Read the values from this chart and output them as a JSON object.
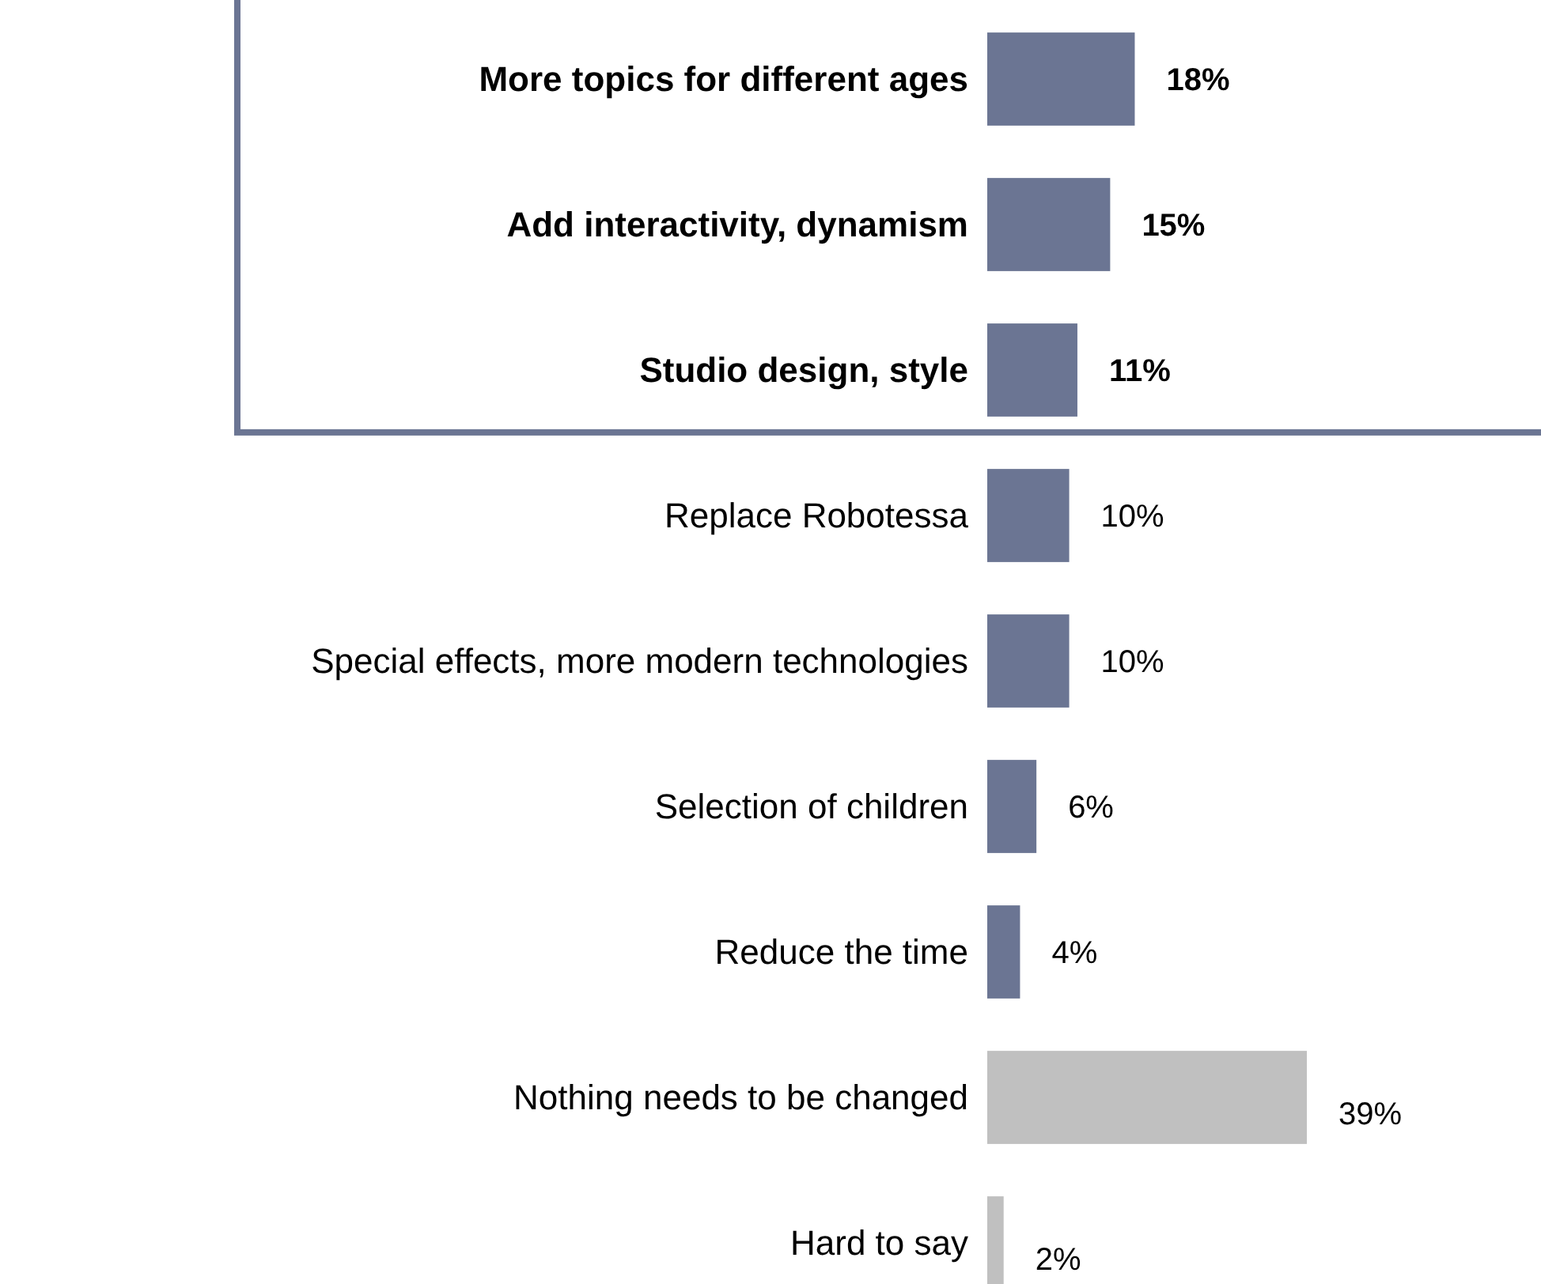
{
  "chart_data": {
    "type": "bar",
    "orientation": "horizontal",
    "categories": [
      "More topics for different ages",
      "Add interactivity, dynamism",
      "Studio design, style",
      "Replace Robotessa",
      "Special effects, more modern technologies",
      "Selection of children",
      "Reduce the time",
      "Nothing needs to be changed",
      "Hard to say"
    ],
    "values": [
      18,
      15,
      11,
      10,
      10,
      6,
      4,
      39,
      2
    ],
    "colors": [
      "#6b7593",
      "#6b7593",
      "#6b7593",
      "#6b7593",
      "#6b7593",
      "#6b7593",
      "#6b7593",
      "#c0c0c0",
      "#c0c0c0"
    ],
    "value_labels": [
      "18%",
      "15%",
      "11%",
      "10%",
      "10%",
      "6%",
      "4%",
      "39%",
      "2%"
    ]
  }
}
